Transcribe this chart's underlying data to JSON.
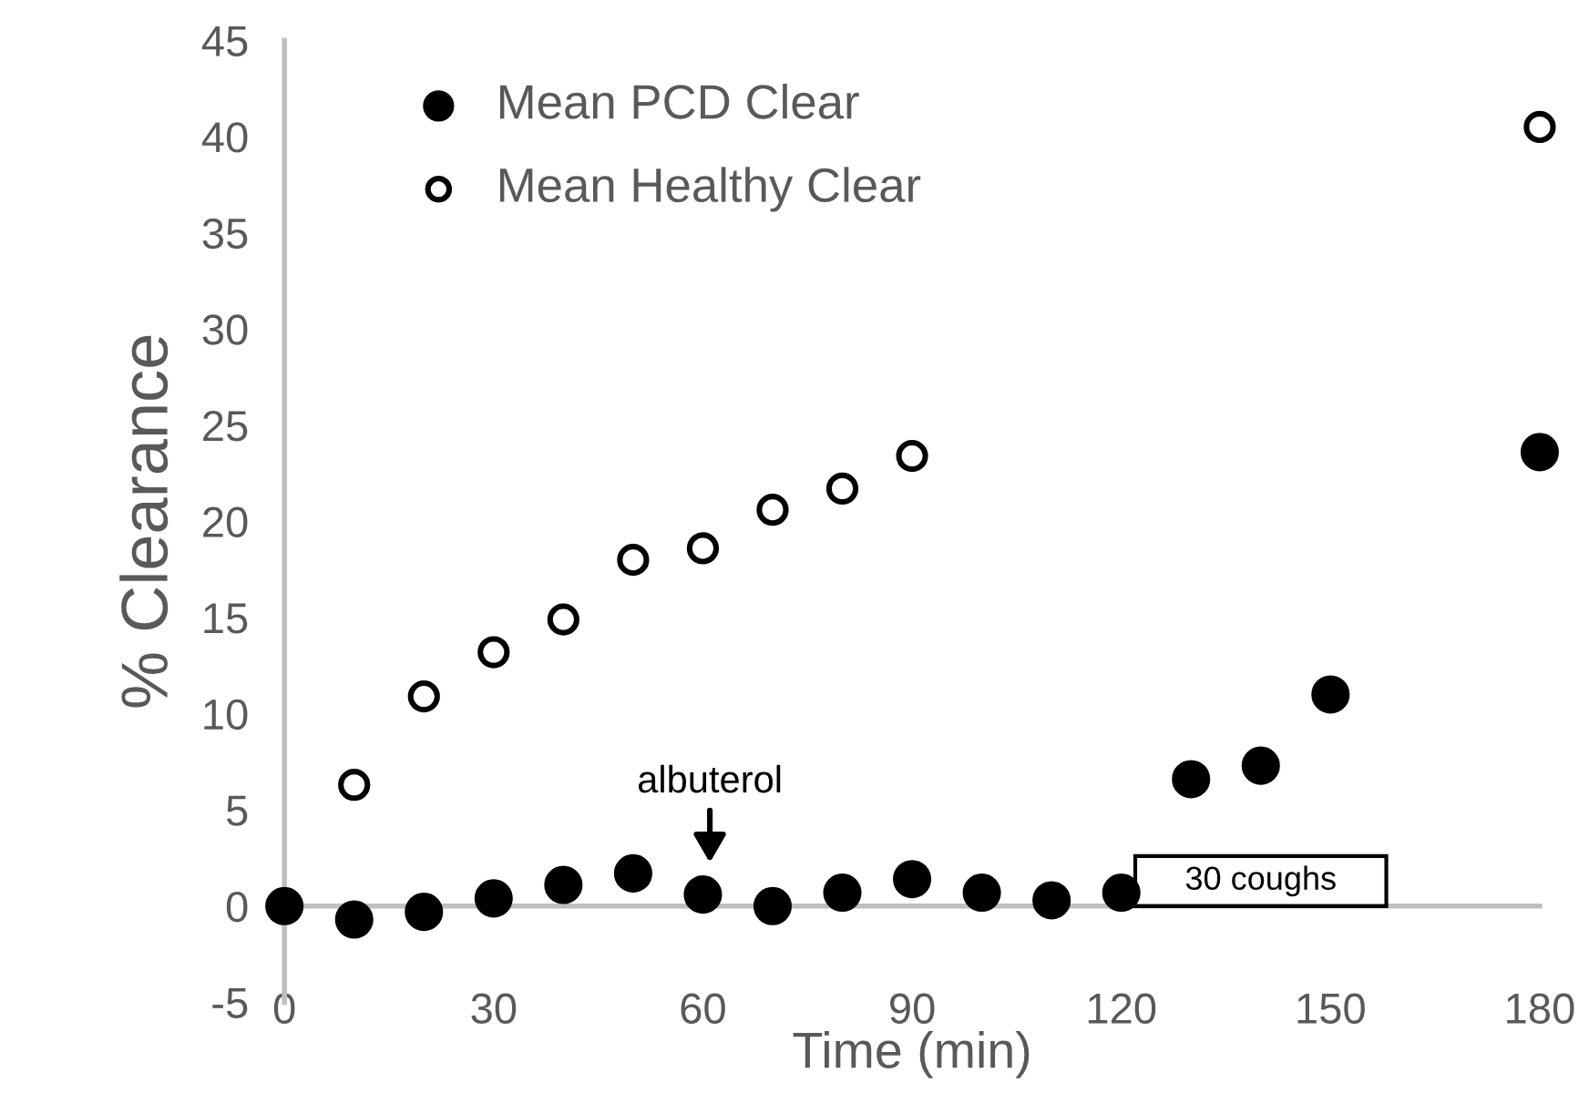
{
  "chart_data": {
    "type": "scatter",
    "xlabel": "Time (min)",
    "ylabel": "% Clearance",
    "xlim": [
      0,
      180
    ],
    "ylim": [
      -5,
      45
    ],
    "xticks": [
      0,
      30,
      60,
      90,
      120,
      150,
      180
    ],
    "yticks": [
      -5,
      0,
      5,
      10,
      15,
      20,
      25,
      30,
      35,
      40,
      45
    ],
    "grid": false,
    "legend": "top left",
    "marker": "circle",
    "series": [
      {
        "name": "Mean PCD Clear",
        "color": "#000000",
        "x": [
          0,
          10,
          20,
          30,
          40,
          50,
          60,
          70,
          80,
          90,
          100,
          110,
          120,
          130,
          140,
          150,
          180
        ],
        "values": [
          0,
          -0.7,
          -0.3,
          0.4,
          1.1,
          1.7,
          0.6,
          0,
          0.7,
          1.4,
          0.7,
          0.3,
          0.7,
          6.6,
          7.3,
          11.0,
          23.6
        ]
      },
      {
        "name": "Mean Healthy Clear",
        "color": "#ffffff",
        "x": [
          10,
          20,
          30,
          40,
          50,
          60,
          70,
          80,
          90,
          180
        ],
        "values": [
          6.3,
          10.9,
          13.2,
          14.9,
          18.0,
          18.6,
          20.6,
          21.7,
          23.4,
          40.5
        ]
      }
    ],
    "annotations": [
      {
        "text": "albuterol",
        "x": 61,
        "y": 2
      },
      {
        "text": "30 coughs",
        "x": 122,
        "y": 0
      }
    ]
  }
}
